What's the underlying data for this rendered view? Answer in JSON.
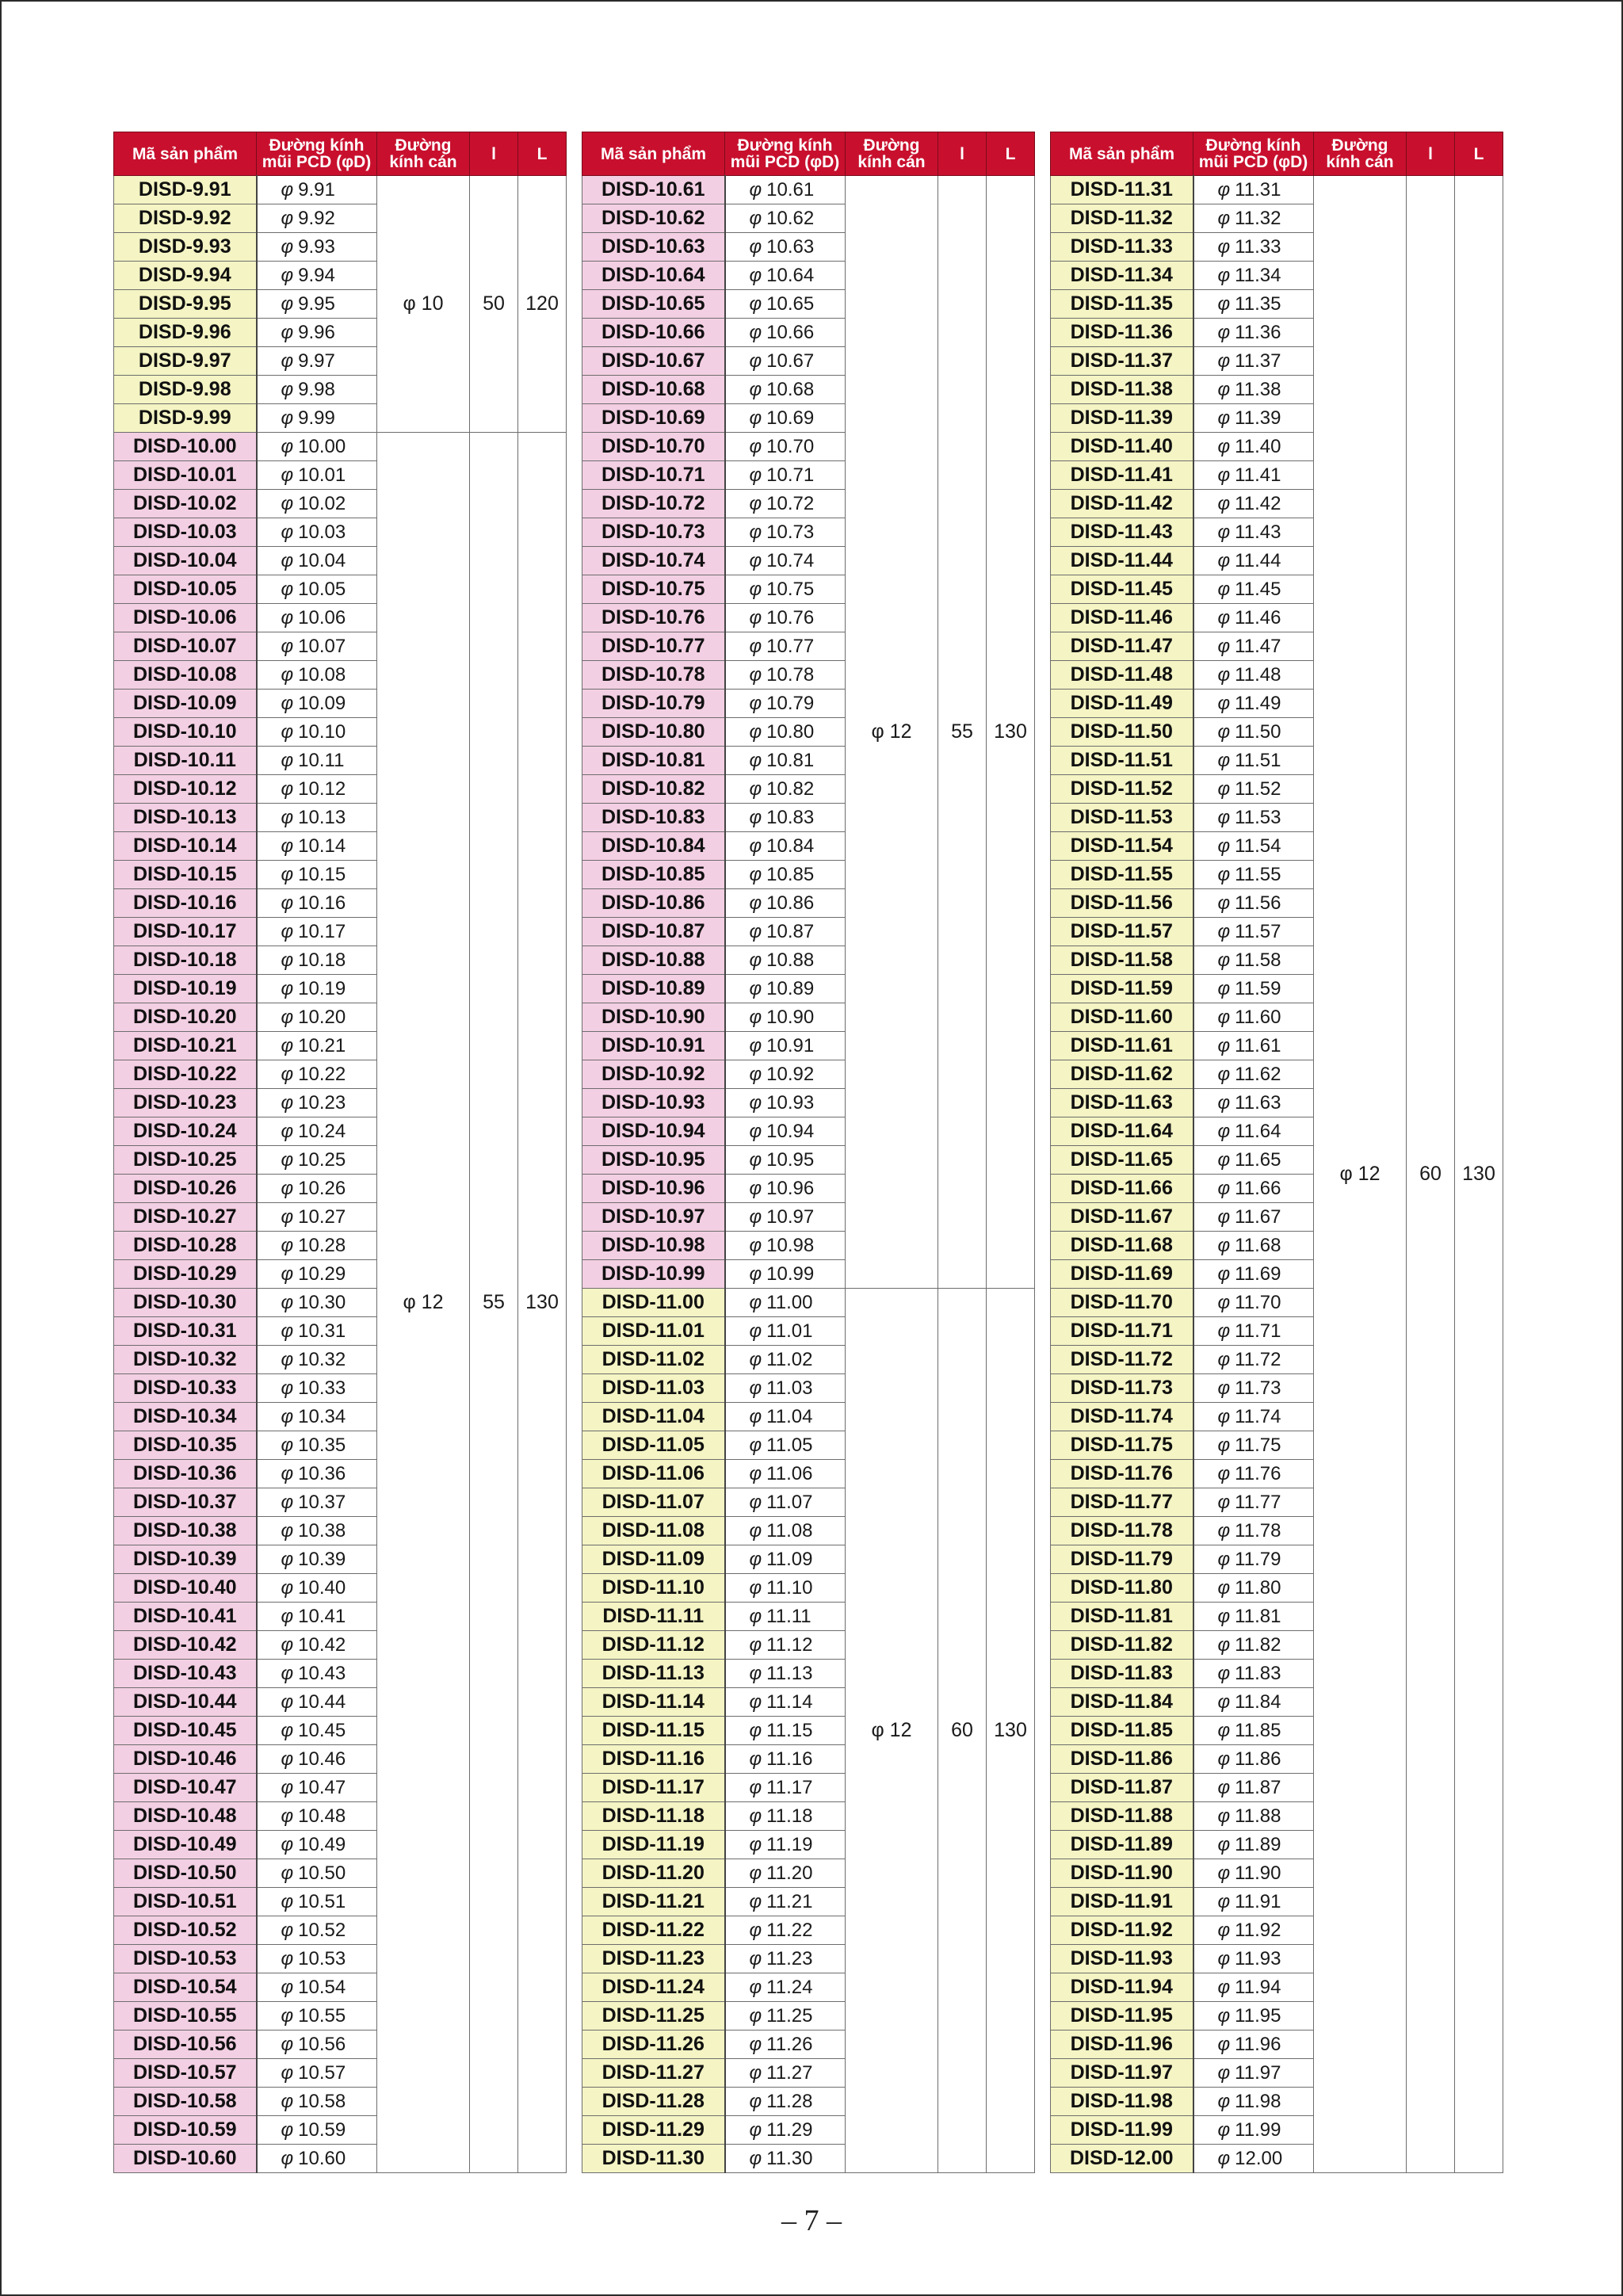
{
  "headers": [
    "Mã sản phẩm",
    "Đường kính mũi PCD (φD)",
    "Đường kính cán",
    "l",
    "L"
  ],
  "phi_symbol": "φ",
  "columns": [
    {
      "groups": [
        {
          "shank": "φ 10",
          "l": "50",
          "L": "120",
          "color": "yellow",
          "rows": [
            [
              "DISD-9.91",
              "9.91"
            ],
            [
              "DISD-9.92",
              "9.92"
            ],
            [
              "DISD-9.93",
              "9.93"
            ],
            [
              "DISD-9.94",
              "9.94"
            ],
            [
              "DISD-9.95",
              "9.95"
            ],
            [
              "DISD-9.96",
              "9.96"
            ],
            [
              "DISD-9.97",
              "9.97"
            ],
            [
              "DISD-9.98",
              "9.98"
            ],
            [
              "DISD-9.99",
              "9.99"
            ]
          ]
        },
        {
          "shank": "φ 12",
          "l": "55",
          "L": "130",
          "color": "pink",
          "rows": [
            [
              "DISD-10.00",
              "10.00"
            ],
            [
              "DISD-10.01",
              "10.01"
            ],
            [
              "DISD-10.02",
              "10.02"
            ],
            [
              "DISD-10.03",
              "10.03"
            ],
            [
              "DISD-10.04",
              "10.04"
            ],
            [
              "DISD-10.05",
              "10.05"
            ],
            [
              "DISD-10.06",
              "10.06"
            ],
            [
              "DISD-10.07",
              "10.07"
            ],
            [
              "DISD-10.08",
              "10.08"
            ],
            [
              "DISD-10.09",
              "10.09"
            ],
            [
              "DISD-10.10",
              "10.10"
            ],
            [
              "DISD-10.11",
              "10.11"
            ],
            [
              "DISD-10.12",
              "10.12"
            ],
            [
              "DISD-10.13",
              "10.13"
            ],
            [
              "DISD-10.14",
              "10.14"
            ],
            [
              "DISD-10.15",
              "10.15"
            ],
            [
              "DISD-10.16",
              "10.16"
            ],
            [
              "DISD-10.17",
              "10.17"
            ],
            [
              "DISD-10.18",
              "10.18"
            ],
            [
              "DISD-10.19",
              "10.19"
            ],
            [
              "DISD-10.20",
              "10.20"
            ],
            [
              "DISD-10.21",
              "10.21"
            ],
            [
              "DISD-10.22",
              "10.22"
            ],
            [
              "DISD-10.23",
              "10.23"
            ],
            [
              "DISD-10.24",
              "10.24"
            ],
            [
              "DISD-10.25",
              "10.25"
            ],
            [
              "DISD-10.26",
              "10.26"
            ],
            [
              "DISD-10.27",
              "10.27"
            ],
            [
              "DISD-10.28",
              "10.28"
            ],
            [
              "DISD-10.29",
              "10.29"
            ],
            [
              "DISD-10.30",
              "10.30"
            ],
            [
              "DISD-10.31",
              "10.31"
            ],
            [
              "DISD-10.32",
              "10.32"
            ],
            [
              "DISD-10.33",
              "10.33"
            ],
            [
              "DISD-10.34",
              "10.34"
            ],
            [
              "DISD-10.35",
              "10.35"
            ],
            [
              "DISD-10.36",
              "10.36"
            ],
            [
              "DISD-10.37",
              "10.37"
            ],
            [
              "DISD-10.38",
              "10.38"
            ],
            [
              "DISD-10.39",
              "10.39"
            ],
            [
              "DISD-10.40",
              "10.40"
            ],
            [
              "DISD-10.41",
              "10.41"
            ],
            [
              "DISD-10.42",
              "10.42"
            ],
            [
              "DISD-10.43",
              "10.43"
            ],
            [
              "DISD-10.44",
              "10.44"
            ],
            [
              "DISD-10.45",
              "10.45"
            ],
            [
              "DISD-10.46",
              "10.46"
            ],
            [
              "DISD-10.47",
              "10.47"
            ],
            [
              "DISD-10.48",
              "10.48"
            ],
            [
              "DISD-10.49",
              "10.49"
            ],
            [
              "DISD-10.50",
              "10.50"
            ],
            [
              "DISD-10.51",
              "10.51"
            ],
            [
              "DISD-10.52",
              "10.52"
            ],
            [
              "DISD-10.53",
              "10.53"
            ],
            [
              "DISD-10.54",
              "10.54"
            ],
            [
              "DISD-10.55",
              "10.55"
            ],
            [
              "DISD-10.56",
              "10.56"
            ],
            [
              "DISD-10.57",
              "10.57"
            ],
            [
              "DISD-10.58",
              "10.58"
            ],
            [
              "DISD-10.59",
              "10.59"
            ],
            [
              "DISD-10.60",
              "10.60"
            ]
          ]
        }
      ]
    },
    {
      "groups": [
        {
          "shank": "φ 12",
          "l": "55",
          "L": "130",
          "color": "pink",
          "rows": [
            [
              "DISD-10.61",
              "10.61"
            ],
            [
              "DISD-10.62",
              "10.62"
            ],
            [
              "DISD-10.63",
              "10.63"
            ],
            [
              "DISD-10.64",
              "10.64"
            ],
            [
              "DISD-10.65",
              "10.65"
            ],
            [
              "DISD-10.66",
              "10.66"
            ],
            [
              "DISD-10.67",
              "10.67"
            ],
            [
              "DISD-10.68",
              "10.68"
            ],
            [
              "DISD-10.69",
              "10.69"
            ],
            [
              "DISD-10.70",
              "10.70"
            ],
            [
              "DISD-10.71",
              "10.71"
            ],
            [
              "DISD-10.72",
              "10.72"
            ],
            [
              "DISD-10.73",
              "10.73"
            ],
            [
              "DISD-10.74",
              "10.74"
            ],
            [
              "DISD-10.75",
              "10.75"
            ],
            [
              "DISD-10.76",
              "10.76"
            ],
            [
              "DISD-10.77",
              "10.77"
            ],
            [
              "DISD-10.78",
              "10.78"
            ],
            [
              "DISD-10.79",
              "10.79"
            ],
            [
              "DISD-10.80",
              "10.80"
            ],
            [
              "DISD-10.81",
              "10.81"
            ],
            [
              "DISD-10.82",
              "10.82"
            ],
            [
              "DISD-10.83",
              "10.83"
            ],
            [
              "DISD-10.84",
              "10.84"
            ],
            [
              "DISD-10.85",
              "10.85"
            ],
            [
              "DISD-10.86",
              "10.86"
            ],
            [
              "DISD-10.87",
              "10.87"
            ],
            [
              "DISD-10.88",
              "10.88"
            ],
            [
              "DISD-10.89",
              "10.89"
            ],
            [
              "DISD-10.90",
              "10.90"
            ],
            [
              "DISD-10.91",
              "10.91"
            ],
            [
              "DISD-10.92",
              "10.92"
            ],
            [
              "DISD-10.93",
              "10.93"
            ],
            [
              "DISD-10.94",
              "10.94"
            ],
            [
              "DISD-10.95",
              "10.95"
            ],
            [
              "DISD-10.96",
              "10.96"
            ],
            [
              "DISD-10.97",
              "10.97"
            ],
            [
              "DISD-10.98",
              "10.98"
            ],
            [
              "DISD-10.99",
              "10.99"
            ]
          ]
        },
        {
          "shank": "φ 12",
          "l": "60",
          "L": "130",
          "color": "yellow",
          "rows": [
            [
              "DISD-11.00",
              "11.00"
            ],
            [
              "DISD-11.01",
              "11.01"
            ],
            [
              "DISD-11.02",
              "11.02"
            ],
            [
              "DISD-11.03",
              "11.03"
            ],
            [
              "DISD-11.04",
              "11.04"
            ],
            [
              "DISD-11.05",
              "11.05"
            ],
            [
              "DISD-11.06",
              "11.06"
            ],
            [
              "DISD-11.07",
              "11.07"
            ],
            [
              "DISD-11.08",
              "11.08"
            ],
            [
              "DISD-11.09",
              "11.09"
            ],
            [
              "DISD-11.10",
              "11.10"
            ],
            [
              "DISD-11.11",
              "11.11"
            ],
            [
              "DISD-11.12",
              "11.12"
            ],
            [
              "DISD-11.13",
              "11.13"
            ],
            [
              "DISD-11.14",
              "11.14"
            ],
            [
              "DISD-11.15",
              "11.15"
            ],
            [
              "DISD-11.16",
              "11.16"
            ],
            [
              "DISD-11.17",
              "11.17"
            ],
            [
              "DISD-11.18",
              "11.18"
            ],
            [
              "DISD-11.19",
              "11.19"
            ],
            [
              "DISD-11.20",
              "11.20"
            ],
            [
              "DISD-11.21",
              "11.21"
            ],
            [
              "DISD-11.22",
              "11.22"
            ],
            [
              "DISD-11.23",
              "11.23"
            ],
            [
              "DISD-11.24",
              "11.24"
            ],
            [
              "DISD-11.25",
              "11.25"
            ],
            [
              "DISD-11.26",
              "11.26"
            ],
            [
              "DISD-11.27",
              "11.27"
            ],
            [
              "DISD-11.28",
              "11.28"
            ],
            [
              "DISD-11.29",
              "11.29"
            ],
            [
              "DISD-11.30",
              "11.30"
            ]
          ]
        }
      ]
    },
    {
      "groups": [
        {
          "shank": "φ 12",
          "l": "60",
          "L": "130",
          "color": "yellow",
          "rows": [
            [
              "DISD-11.31",
              "11.31"
            ],
            [
              "DISD-11.32",
              "11.32"
            ],
            [
              "DISD-11.33",
              "11.33"
            ],
            [
              "DISD-11.34",
              "11.34"
            ],
            [
              "DISD-11.35",
              "11.35"
            ],
            [
              "DISD-11.36",
              "11.36"
            ],
            [
              "DISD-11.37",
              "11.37"
            ],
            [
              "DISD-11.38",
              "11.38"
            ],
            [
              "DISD-11.39",
              "11.39"
            ],
            [
              "DISD-11.40",
              "11.40"
            ],
            [
              "DISD-11.41",
              "11.41"
            ],
            [
              "DISD-11.42",
              "11.42"
            ],
            [
              "DISD-11.43",
              "11.43"
            ],
            [
              "DISD-11.44",
              "11.44"
            ],
            [
              "DISD-11.45",
              "11.45"
            ],
            [
              "DISD-11.46",
              "11.46"
            ],
            [
              "DISD-11.47",
              "11.47"
            ],
            [
              "DISD-11.48",
              "11.48"
            ],
            [
              "DISD-11.49",
              "11.49"
            ],
            [
              "DISD-11.50",
              "11.50"
            ],
            [
              "DISD-11.51",
              "11.51"
            ],
            [
              "DISD-11.52",
              "11.52"
            ],
            [
              "DISD-11.53",
              "11.53"
            ],
            [
              "DISD-11.54",
              "11.54"
            ],
            [
              "DISD-11.55",
              "11.55"
            ],
            [
              "DISD-11.56",
              "11.56"
            ],
            [
              "DISD-11.57",
              "11.57"
            ],
            [
              "DISD-11.58",
              "11.58"
            ],
            [
              "DISD-11.59",
              "11.59"
            ],
            [
              "DISD-11.60",
              "11.60"
            ],
            [
              "DISD-11.61",
              "11.61"
            ],
            [
              "DISD-11.62",
              "11.62"
            ],
            [
              "DISD-11.63",
              "11.63"
            ],
            [
              "DISD-11.64",
              "11.64"
            ],
            [
              "DISD-11.65",
              "11.65"
            ],
            [
              "DISD-11.66",
              "11.66"
            ],
            [
              "DISD-11.67",
              "11.67"
            ],
            [
              "DISD-11.68",
              "11.68"
            ],
            [
              "DISD-11.69",
              "11.69"
            ],
            [
              "DISD-11.70",
              "11.70"
            ],
            [
              "DISD-11.71",
              "11.71"
            ],
            [
              "DISD-11.72",
              "11.72"
            ],
            [
              "DISD-11.73",
              "11.73"
            ],
            [
              "DISD-11.74",
              "11.74"
            ],
            [
              "DISD-11.75",
              "11.75"
            ],
            [
              "DISD-11.76",
              "11.76"
            ],
            [
              "DISD-11.77",
              "11.77"
            ],
            [
              "DISD-11.78",
              "11.78"
            ],
            [
              "DISD-11.79",
              "11.79"
            ],
            [
              "DISD-11.80",
              "11.80"
            ],
            [
              "DISD-11.81",
              "11.81"
            ],
            [
              "DISD-11.82",
              "11.82"
            ],
            [
              "DISD-11.83",
              "11.83"
            ],
            [
              "DISD-11.84",
              "11.84"
            ],
            [
              "DISD-11.85",
              "11.85"
            ],
            [
              "DISD-11.86",
              "11.86"
            ],
            [
              "DISD-11.87",
              "11.87"
            ],
            [
              "DISD-11.88",
              "11.88"
            ],
            [
              "DISD-11.89",
              "11.89"
            ],
            [
              "DISD-11.90",
              "11.90"
            ],
            [
              "DISD-11.91",
              "11.91"
            ],
            [
              "DISD-11.92",
              "11.92"
            ],
            [
              "DISD-11.93",
              "11.93"
            ],
            [
              "DISD-11.94",
              "11.94"
            ],
            [
              "DISD-11.95",
              "11.95"
            ],
            [
              "DISD-11.96",
              "11.96"
            ],
            [
              "DISD-11.97",
              "11.97"
            ],
            [
              "DISD-11.98",
              "11.98"
            ],
            [
              "DISD-11.99",
              "11.99"
            ],
            [
              "DISD-12.00",
              "12.00"
            ]
          ]
        }
      ]
    }
  ],
  "page_number": "– 7 –"
}
